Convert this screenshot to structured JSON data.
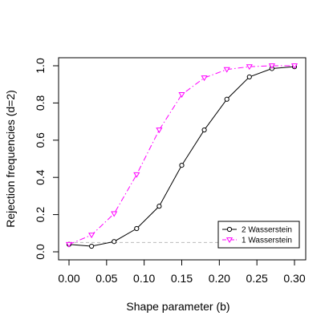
{
  "chart_data": {
    "type": "line",
    "xlabel": "Shape parameter (b)",
    "ylabel": "Rejection frequencies (d=2)",
    "xlim": [
      0.0,
      0.3
    ],
    "ylim": [
      0.0,
      1.0
    ],
    "x_ticks": [
      "0.00",
      "0.05",
      "0.10",
      "0.15",
      "0.20",
      "0.25",
      "0.30"
    ],
    "y_ticks": [
      "0.0",
      "0.2",
      "0.4",
      "0.6",
      "0.8",
      "1.0"
    ],
    "x": [
      0.0,
      0.03,
      0.06,
      0.09,
      0.12,
      0.15,
      0.18,
      0.21,
      0.24,
      0.27,
      0.3
    ],
    "series": [
      {
        "name": "2  Wasserstein",
        "color": "#000000",
        "line": "solid",
        "marker": "circle",
        "values": [
          0.04,
          0.03,
          0.055,
          0.125,
          0.245,
          0.465,
          0.655,
          0.82,
          0.94,
          0.985,
          0.995
        ]
      },
      {
        "name": "1  Wasserstein",
        "color": "#ff00ff",
        "line": "dashdot",
        "marker": "triangle-down",
        "values": [
          0.04,
          0.09,
          0.205,
          0.415,
          0.655,
          0.845,
          0.935,
          0.98,
          0.995,
          1.0,
          1.0
        ]
      }
    ],
    "reference_line": {
      "y": 0.05,
      "color": "#bbbbbb",
      "style": "dashed"
    },
    "legend_position": "bottom-right",
    "grid": false
  }
}
